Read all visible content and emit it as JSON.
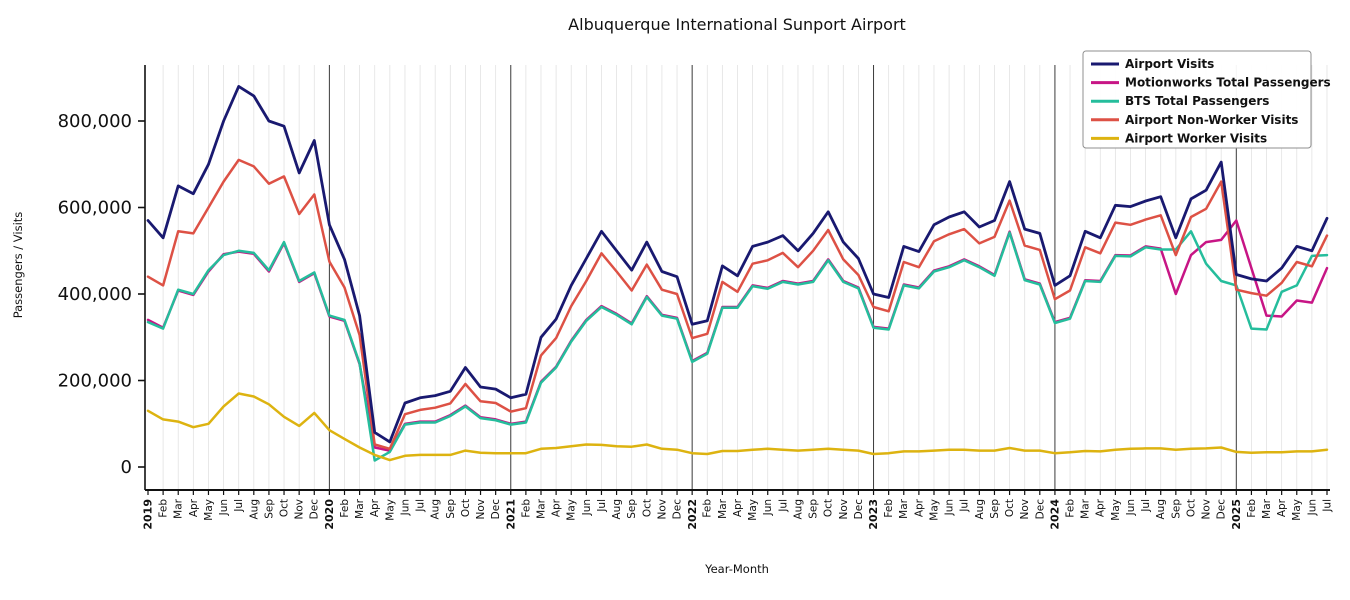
{
  "chart_data": {
    "type": "line",
    "title": "Albuquerque International Sunport Airport",
    "xlabel": "Year-Month",
    "ylabel": "Passengers / Visits",
    "legend_position": "upper right",
    "grid": "light vertical line at every month, dark vertical line at every January",
    "ylim": [
      0,
      930000
    ],
    "y_ticks": [
      0,
      200000,
      400000,
      600000,
      800000
    ],
    "x_labels": [
      "2019",
      "Feb",
      "Mar",
      "Apr",
      "May",
      "Jun",
      "Jul",
      "Aug",
      "Sep",
      "Oct",
      "Nov",
      "Dec",
      "2020",
      "Feb",
      "Mar",
      "Apr",
      "May",
      "Jun",
      "Jul",
      "Aug",
      "Sep",
      "Oct",
      "Nov",
      "Dec",
      "2021",
      "Feb",
      "Mar",
      "Apr",
      "May",
      "Jun",
      "Jul",
      "Aug",
      "Sep",
      "Oct",
      "Nov",
      "Dec",
      "2022",
      "Feb",
      "Mar",
      "Apr",
      "May",
      "Jun",
      "Jul",
      "Aug",
      "Sep",
      "Oct",
      "Nov",
      "Dec",
      "2023",
      "Feb",
      "Mar",
      "Apr",
      "May",
      "Jun",
      "Jul",
      "Aug",
      "Sep",
      "Oct",
      "Nov",
      "Dec",
      "2024",
      "Feb",
      "Mar",
      "Apr",
      "May",
      "Jun",
      "Jul",
      "Aug",
      "Sep",
      "Oct",
      "Nov",
      "Dec",
      "2025",
      "Feb",
      "Mar",
      "Apr",
      "May",
      "Jun",
      "Jul"
    ],
    "series": [
      {
        "name": "Airport Visits",
        "color": "#191970",
        "values": [
          570000,
          530000,
          650000,
          632000,
          700000,
          800000,
          880000,
          858000,
          800000,
          788000,
          680000,
          755000,
          560000,
          480000,
          350000,
          80000,
          58000,
          148000,
          160000,
          165000,
          175000,
          230000,
          185000,
          180000,
          160000,
          168000,
          300000,
          342000,
          420000,
          482000,
          545000,
          500000,
          455000,
          520000,
          452000,
          440000,
          330000,
          338000,
          465000,
          442000,
          510000,
          520000,
          535000,
          500000,
          540000,
          590000,
          520000,
          482000,
          400000,
          392000,
          510000,
          498000,
          560000,
          578000,
          590000,
          555000,
          570000,
          660000,
          550000,
          540000,
          420000,
          442000,
          545000,
          530000,
          605000,
          602000,
          615000,
          625000,
          530000,
          620000,
          640000,
          705000,
          445000,
          435000,
          430000,
          460000,
          510000,
          500000,
          575000
        ]
      },
      {
        "name": "Motionworks Total Passengers",
        "color": "#c71585",
        "values": [
          340000,
          322000,
          408000,
          398000,
          452000,
          492000,
          498000,
          493000,
          452000,
          518000,
          428000,
          448000,
          348000,
          338000,
          238000,
          45000,
          38000,
          100000,
          105000,
          105000,
          120000,
          142000,
          115000,
          110000,
          100000,
          105000,
          197000,
          232000,
          292000,
          340000,
          372000,
          354000,
          332000,
          395000,
          352000,
          345000,
          245000,
          264000,
          370000,
          370000,
          420000,
          414000,
          430000,
          424000,
          430000,
          480000,
          430000,
          415000,
          324000,
          320000,
          422000,
          415000,
          454000,
          464000,
          480000,
          464000,
          444000,
          544000,
          434000,
          424000,
          335000,
          345000,
          432000,
          430000,
          490000,
          489000,
          510000,
          505000,
          400000,
          490000,
          520000,
          525000,
          570000,
          460000,
          350000,
          348000,
          385000,
          380000,
          460000
        ]
      },
      {
        "name": "BTS Total Passengers",
        "color": "#25bd9c",
        "values": [
          335000,
          320000,
          410000,
          400000,
          455000,
          490000,
          500000,
          495000,
          455000,
          520000,
          430000,
          450000,
          350000,
          340000,
          240000,
          15000,
          35000,
          98000,
          103000,
          103000,
          118000,
          140000,
          113000,
          108000,
          98000,
          103000,
          195000,
          230000,
          290000,
          338000,
          370000,
          352000,
          330000,
          393000,
          350000,
          343000,
          243000,
          262000,
          368000,
          368000,
          418000,
          412000,
          428000,
          422000,
          428000,
          478000,
          428000,
          413000,
          322000,
          318000,
          420000,
          413000,
          452000,
          462000,
          478000,
          462000,
          442000,
          542000,
          432000,
          422000,
          333000,
          343000,
          430000,
          428000,
          488000,
          487000,
          508000,
          503000,
          503000,
          545000,
          470000,
          430000,
          420000,
          320000,
          318000,
          405000,
          420000,
          488000,
          490000
        ]
      },
      {
        "name": "Airport Non-Worker Visits",
        "color": "#dd5145",
        "values": [
          440000,
          420000,
          545000,
          540000,
          600000,
          660000,
          710000,
          695000,
          655000,
          672000,
          585000,
          630000,
          475000,
          415000,
          305000,
          52000,
          42000,
          122000,
          132000,
          137000,
          147000,
          192000,
          152000,
          148000,
          128000,
          136000,
          258000,
          298000,
          372000,
          430000,
          494000,
          452000,
          408000,
          468000,
          410000,
          400000,
          298000,
          308000,
          428000,
          405000,
          470000,
          478000,
          495000,
          462000,
          500000,
          548000,
          480000,
          444000,
          370000,
          360000,
          474000,
          462000,
          522000,
          538000,
          550000,
          517000,
          532000,
          616000,
          512000,
          502000,
          388000,
          408000,
          508000,
          494000,
          565000,
          560000,
          572000,
          582000,
          490000,
          578000,
          597000,
          660000,
          410000,
          402000,
          396000,
          426000,
          474000,
          464000,
          535000
        ]
      },
      {
        "name": "Airport Worker Visits",
        "color": "#ddb310",
        "values": [
          130000,
          110000,
          105000,
          92000,
          100000,
          140000,
          170000,
          163000,
          145000,
          116000,
          95000,
          125000,
          85000,
          65000,
          45000,
          28000,
          16000,
          26000,
          28000,
          28000,
          28000,
          38000,
          33000,
          32000,
          32000,
          32000,
          42000,
          44000,
          48000,
          52000,
          51000,
          48000,
          47000,
          52000,
          42000,
          40000,
          32000,
          30000,
          37000,
          37000,
          40000,
          42000,
          40000,
          38000,
          40000,
          42000,
          40000,
          38000,
          30000,
          32000,
          36000,
          36000,
          38000,
          40000,
          40000,
          38000,
          38000,
          44000,
          38000,
          38000,
          32000,
          34000,
          37000,
          36000,
          40000,
          42000,
          43000,
          43000,
          40000,
          42000,
          43000,
          45000,
          35000,
          33000,
          34000,
          34000,
          36000,
          36000,
          40000
        ]
      }
    ]
  }
}
